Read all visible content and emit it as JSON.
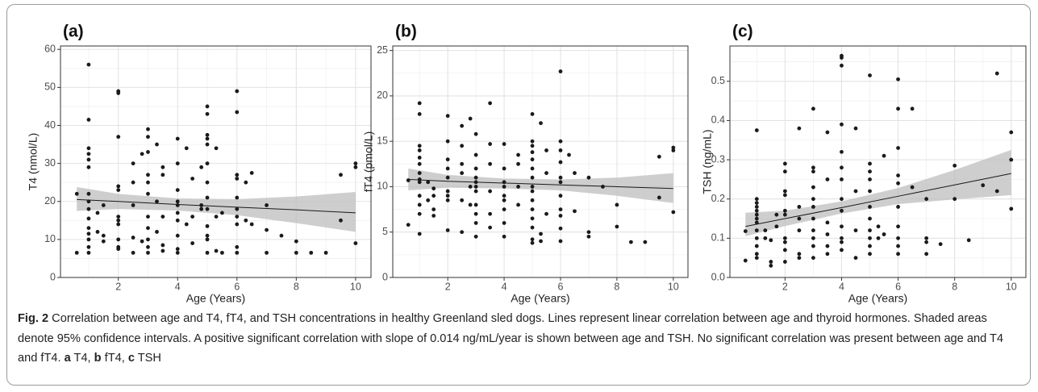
{
  "chart_data": [
    {
      "type": "scatter",
      "title": "(a)",
      "x_label": "Age (Years)",
      "y_label": "T4 (nmol/L)",
      "color": "#1a1a1a",
      "xlim": [
        0.05,
        10.52
      ],
      "xticks": [
        2,
        4,
        6,
        8,
        10
      ],
      "ylim": [
        0,
        60.9
      ],
      "yticks": [
        0,
        10,
        20,
        30,
        40,
        50,
        60
      ],
      "grid": true,
      "x": [
        0.6,
        0.6,
        1,
        1,
        1,
        1,
        1,
        1,
        1,
        1,
        1,
        1,
        1,
        1,
        1,
        1,
        1,
        1.3,
        1.3,
        1.5,
        1.5,
        1.5,
        2,
        2,
        2,
        2,
        2,
        2,
        2,
        2,
        2,
        2,
        2,
        2.5,
        2.5,
        2.5,
        2.5,
        2.5,
        2.8,
        2.8,
        3,
        3,
        3,
        3,
        3,
        3,
        3,
        3,
        3,
        3,
        3,
        3.3,
        3.3,
        3.3,
        3.5,
        3.5,
        3.5,
        3.5,
        3.5,
        4,
        4,
        4,
        4,
        4,
        4,
        4,
        4,
        4,
        4,
        4.3,
        4.3,
        4.5,
        4.5,
        4.5,
        4.8,
        4.8,
        4.8,
        5,
        5,
        5,
        5,
        5,
        5,
        5,
        5,
        5,
        5,
        5,
        5,
        5,
        5.3,
        5.3,
        5.3,
        5.5,
        5.5,
        6,
        6,
        6,
        6,
        6,
        6,
        6,
        6,
        6,
        6,
        6.3,
        6.3,
        6.5,
        6.5,
        7,
        7,
        7,
        7.5,
        8,
        8,
        8.5,
        9,
        9.5,
        9.5,
        10,
        10,
        10
      ],
      "values": [
        22,
        6.5,
        56,
        41.5,
        34,
        32.5,
        31,
        29,
        22,
        20,
        18,
        15.5,
        13,
        11.5,
        10,
        8,
        6.5,
        17,
        12,
        19,
        11,
        9.5,
        49,
        48.5,
        37,
        24,
        23,
        16,
        15,
        14,
        10,
        8,
        7.5,
        30,
        25,
        19,
        10.5,
        6.5,
        32.5,
        9.5,
        39,
        37,
        33,
        27,
        25,
        22,
        16,
        13,
        10,
        8,
        6.5,
        35,
        20,
        12,
        29,
        27,
        16,
        8.5,
        7,
        36.5,
        30,
        23,
        20,
        19,
        17,
        15,
        11,
        7.5,
        6.5,
        34,
        14,
        26,
        16,
        9,
        29,
        19,
        18,
        45,
        43,
        37.5,
        36.5,
        35,
        30,
        25,
        21,
        18,
        13.5,
        11,
        10,
        6.5,
        34,
        16,
        7,
        17,
        6.5,
        49,
        43.5,
        27,
        26,
        21,
        18,
        16,
        14,
        8,
        6.5,
        25,
        15,
        27.5,
        14,
        19,
        12.5,
        6.5,
        11,
        9.5,
        6.5,
        6.5,
        6.5,
        27,
        15,
        30,
        29,
        9
      ],
      "fit": {
        "color": "#1a1a1a",
        "band_color": "#bdbdbd",
        "x": [
          0.6,
          2,
          4,
          6,
          8,
          10
        ],
        "values": [
          20.5,
          20,
          19.2,
          18.5,
          17.8,
          17
        ],
        "lower": [
          17.5,
          18,
          17.6,
          16.4,
          14.3,
          12
        ],
        "upper": [
          23.8,
          22,
          20.8,
          20.6,
          21.3,
          22.5
        ]
      }
    },
    {
      "type": "scatter",
      "title": "(b)",
      "x_label": "Age (Years)",
      "y_label": "fT4 (pmol/L)",
      "color": "#1a1a1a",
      "xlim": [
        0.05,
        10.52
      ],
      "xticks": [
        2,
        4,
        6,
        8,
        10
      ],
      "ylim": [
        0,
        25.5
      ],
      "yticks": [
        0,
        5,
        10,
        15,
        20,
        25
      ],
      "grid": true,
      "x": [
        0.6,
        0.6,
        1,
        1,
        1,
        1,
        1,
        1,
        1,
        1,
        1,
        1,
        1,
        1,
        1,
        1.3,
        1.3,
        1.5,
        1.5,
        1.5,
        1.5,
        2,
        2,
        2,
        2,
        2,
        2,
        2,
        2,
        2,
        2.5,
        2.5,
        2.5,
        2.5,
        2.5,
        2.5,
        2.8,
        2.8,
        2.8,
        3,
        3,
        3,
        3,
        3,
        3,
        3,
        3,
        3,
        3,
        3,
        3.5,
        3.5,
        3.5,
        3.5,
        3.5,
        3.5,
        4,
        4,
        4,
        4,
        4,
        4,
        4,
        4,
        4,
        4.5,
        4.5,
        4.5,
        4.5,
        5,
        5,
        5,
        5,
        5,
        5,
        5,
        5,
        5,
        5,
        5,
        5,
        5,
        5,
        5,
        5.3,
        5.3,
        5.3,
        5.5,
        5.5,
        5.5,
        6,
        6,
        6,
        6,
        6,
        6,
        6,
        6,
        6,
        6,
        6,
        6.3,
        6.5,
        6.5,
        7,
        7,
        7,
        7.5,
        8,
        8,
        8.5,
        9,
        9.5,
        9.5,
        10,
        10,
        10
      ],
      "values": [
        10.7,
        5.8,
        19.2,
        18,
        14.5,
        14,
        13.2,
        12.5,
        11.5,
        10.8,
        10.5,
        9,
        8,
        7,
        4.8,
        10.5,
        8.5,
        9.8,
        9,
        7.5,
        6.8,
        17.8,
        15,
        13,
        12,
        11,
        9.5,
        9,
        8.5,
        5.2,
        16.7,
        14.5,
        12.5,
        11.5,
        8.5,
        5,
        17.5,
        10,
        8,
        15.8,
        13.5,
        12,
        11,
        10.5,
        10,
        9.5,
        8,
        7,
        6,
        4.5,
        19.2,
        14.7,
        12.5,
        9.5,
        7,
        5.5,
        14.7,
        12,
        10.5,
        10,
        9,
        8.5,
        7.5,
        6,
        4.5,
        13.5,
        12.5,
        10,
        8,
        18,
        15,
        14.5,
        13.8,
        13,
        12,
        11,
        10,
        9.5,
        8.5,
        7.5,
        6.5,
        5.5,
        4.2,
        3.8,
        17,
        4.8,
        4,
        14,
        11.5,
        7,
        22.7,
        15,
        14,
        12.7,
        11,
        10.5,
        9,
        7.5,
        6.8,
        5.4,
        4,
        13.5,
        11.5,
        7.3,
        11,
        5,
        4.5,
        10,
        8,
        5.6,
        3.9,
        3.9,
        13.3,
        8.8,
        14.3,
        14,
        7.2
      ],
      "fit": {
        "color": "#1a1a1a",
        "band_color": "#bdbdbd",
        "x": [
          0.6,
          2,
          4,
          6,
          8,
          10
        ],
        "values": [
          10.8,
          10.6,
          10.4,
          10.2,
          10,
          9.8
        ],
        "lower": [
          9.6,
          9.9,
          9.8,
          9.6,
          9,
          8.2
        ],
        "upper": [
          12,
          11.3,
          10.9,
          10.8,
          11,
          11.5
        ]
      }
    },
    {
      "type": "scatter",
      "title": "(c)",
      "x_label": "Age (Years)",
      "y_label": "TSH (ng/mL)",
      "color": "#1a1a1a",
      "xlim": [
        0.05,
        10.52
      ],
      "xticks": [
        2,
        4,
        6,
        8,
        10
      ],
      "ylim": [
        0,
        0.59
      ],
      "yticks": [
        {
          "value": 0,
          "label": "0.0"
        },
        0.1,
        0.2,
        0.3,
        0.4,
        0.5
      ],
      "grid": true,
      "x": [
        0.6,
        0.6,
        1,
        1,
        1,
        1,
        1,
        1,
        1,
        1,
        1,
        1,
        1,
        1,
        1,
        1.3,
        1.3,
        1.5,
        1.5,
        1.5,
        1.7,
        1.7,
        2,
        2,
        2,
        2,
        2,
        2,
        2,
        2,
        2,
        2,
        2.5,
        2.5,
        2.5,
        2.5,
        2.5,
        2.5,
        3,
        3,
        3,
        3,
        3,
        3,
        3,
        3,
        3,
        3,
        3,
        3.5,
        3.5,
        3.5,
        3.5,
        3.5,
        3.5,
        4,
        4,
        4,
        4,
        4,
        4,
        4,
        4,
        4,
        4,
        4,
        4,
        4,
        4.5,
        4.5,
        4.5,
        4.5,
        5,
        5,
        5,
        5,
        5,
        5,
        5,
        5,
        5,
        5,
        5,
        5.3,
        5.3,
        5.5,
        5.5,
        6,
        6,
        6,
        6,
        6,
        6,
        6,
        6,
        6,
        6,
        6.5,
        6.5,
        7,
        7,
        7,
        7,
        7.5,
        8,
        8,
        8.5,
        9,
        9.5,
        9.5,
        10,
        10,
        10
      ],
      "values": [
        0.118,
        0.043,
        0.375,
        0.2,
        0.19,
        0.18,
        0.17,
        0.16,
        0.15,
        0.14,
        0.12,
        0.1,
        0.08,
        0.06,
        0.05,
        0.12,
        0.1,
        0.095,
        0.04,
        0.03,
        0.16,
        0.13,
        0.29,
        0.27,
        0.22,
        0.21,
        0.17,
        0.16,
        0.1,
        0.09,
        0.07,
        0.04,
        0.38,
        0.18,
        0.15,
        0.12,
        0.06,
        0.05,
        0.43,
        0.28,
        0.27,
        0.23,
        0.2,
        0.18,
        0.15,
        0.12,
        0.1,
        0.08,
        0.05,
        0.37,
        0.25,
        0.14,
        0.11,
        0.08,
        0.06,
        0.565,
        0.56,
        0.54,
        0.39,
        0.32,
        0.28,
        0.25,
        0.2,
        0.17,
        0.13,
        0.1,
        0.09,
        0.07,
        0.38,
        0.22,
        0.12,
        0.05,
        0.515,
        0.29,
        0.27,
        0.25,
        0.22,
        0.18,
        0.15,
        0.12,
        0.1,
        0.08,
        0.06,
        0.13,
        0.1,
        0.31,
        0.11,
        0.505,
        0.43,
        0.33,
        0.26,
        0.24,
        0.18,
        0.13,
        0.1,
        0.08,
        0.06,
        0.43,
        0.23,
        0.2,
        0.1,
        0.09,
        0.06,
        0.085,
        0.285,
        0.2,
        0.095,
        0.235,
        0.52,
        0.22,
        0.37,
        0.3,
        0.175
      ],
      "fit": {
        "color": "#1a1a1a",
        "band_color": "#bdbdbd",
        "x": [
          0.6,
          2,
          4,
          6,
          8,
          10
        ],
        "values": [
          0.13,
          0.15,
          0.178,
          0.207,
          0.236,
          0.265
        ],
        "lower": [
          0.105,
          0.131,
          0.163,
          0.187,
          0.199,
          0.21
        ],
        "upper": [
          0.165,
          0.17,
          0.194,
          0.228,
          0.274,
          0.325
        ]
      }
    }
  ],
  "caption": [
    {
      "text": "Fig. 2",
      "bold": true
    },
    {
      "text": " Correlation between age and T4, fT4, and TSH concentrations in healthy Greenland sled dogs. Lines represent linear correlation between age and thyroid hormones. Shaded areas denote 95% confidence intervals. A positive significant correlation with slope of 0.014 ng/mL/year is shown between age and TSH. No significant correlation was present between age and T4 and fT4. ",
      "bold": false
    },
    {
      "text": "a",
      "bold": true
    },
    {
      "text": " T4, ",
      "bold": false
    },
    {
      "text": "b",
      "bold": true
    },
    {
      "text": " fT4, ",
      "bold": false
    },
    {
      "text": "c",
      "bold": true
    },
    {
      "text": " TSH",
      "bold": false
    }
  ]
}
